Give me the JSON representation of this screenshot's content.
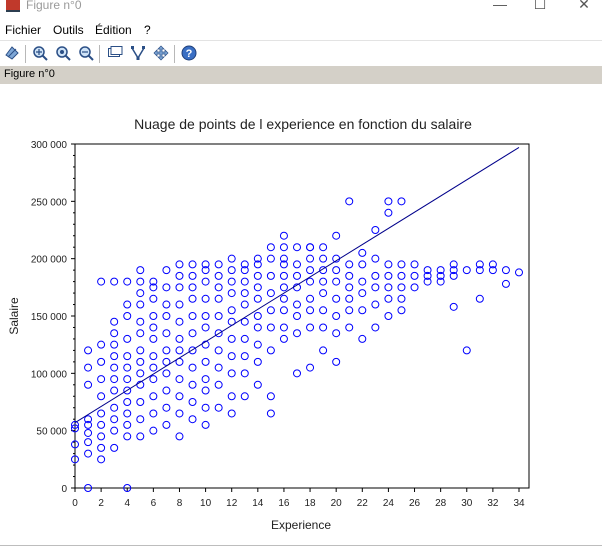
{
  "window": {
    "title": "Figure n°0",
    "minimize": "—",
    "maximize": "☐",
    "close": "✕"
  },
  "menu": {
    "items": [
      "Fichier",
      "Outils",
      "Édition",
      "?"
    ]
  },
  "toolbar": {
    "icons": [
      "rotate-icon",
      "zoom-in-icon",
      "zoom-out-icon",
      "zoom-fit-icon",
      "datatip-icon",
      "edit-curve-icon",
      "pan-icon",
      "help-icon"
    ]
  },
  "figure_label": "Figure n°0",
  "colors": {
    "points": "#0000ff",
    "line": "#00008b",
    "figbar": "#d4d0c8"
  },
  "chart_data": {
    "type": "scatter",
    "title": "Nuage de points de l experience en fonction du salaire",
    "xlabel": "Experience",
    "ylabel": "Salaire",
    "xlim": [
      0,
      34
    ],
    "ylim": [
      0,
      300000
    ],
    "xticks": [
      "0",
      "2",
      "4",
      "6",
      "8",
      "10",
      "12",
      "14",
      "16",
      "18",
      "20",
      "22",
      "24",
      "26",
      "28",
      "30",
      "32",
      "34"
    ],
    "yticks": [
      "0",
      "50 000",
      "100 000",
      "150 000",
      "200 000",
      "250 000",
      "300 000"
    ],
    "regression_line": {
      "x": [
        0,
        34
      ],
      "y": [
        57000,
        297000
      ]
    },
    "points": {
      "x": [
        0,
        0,
        0,
        0,
        1,
        1,
        1,
        1,
        1,
        1,
        1,
        1,
        1,
        2,
        2,
        2,
        2,
        2,
        2,
        2,
        2,
        2,
        2,
        3,
        3,
        3,
        3,
        3,
        3,
        3,
        3,
        3,
        3,
        3,
        3,
        4,
        4,
        4,
        4,
        4,
        4,
        4,
        4,
        4,
        4,
        4,
        4,
        4,
        5,
        5,
        5,
        5,
        5,
        5,
        5,
        5,
        5,
        5,
        5,
        5,
        5,
        6,
        6,
        6,
        6,
        6,
        6,
        6,
        6,
        6,
        6,
        6,
        6,
        7,
        7,
        7,
        7,
        7,
        7,
        7,
        7,
        7,
        7,
        7,
        8,
        8,
        8,
        8,
        8,
        8,
        8,
        8,
        8,
        8,
        8,
        8,
        9,
        9,
        9,
        9,
        9,
        9,
        9,
        9,
        9,
        9,
        9,
        10,
        10,
        10,
        10,
        10,
        10,
        10,
        10,
        10,
        10,
        10,
        10,
        11,
        11,
        11,
        11,
        11,
        11,
        11,
        11,
        11,
        11,
        12,
        12,
        12,
        12,
        12,
        12,
        12,
        12,
        12,
        12,
        12,
        13,
        13,
        13,
        13,
        13,
        13,
        13,
        13,
        13,
        13,
        14,
        14,
        14,
        14,
        14,
        14,
        14,
        14,
        14,
        14,
        15,
        15,
        15,
        15,
        15,
        15,
        15,
        15,
        15,
        16,
        16,
        16,
        16,
        16,
        16,
        16,
        16,
        16,
        16,
        17,
        17,
        17,
        17,
        17,
        17,
        17,
        17,
        18,
        18,
        18,
        18,
        18,
        18,
        18,
        18,
        18,
        19,
        19,
        19,
        19,
        19,
        19,
        19,
        19,
        20,
        20,
        20,
        20,
        20,
        20,
        20,
        20,
        21,
        21,
        21,
        21,
        21,
        21,
        21,
        22,
        22,
        22,
        22,
        22,
        22,
        23,
        23,
        23,
        23,
        23,
        23,
        24,
        24,
        24,
        24,
        24,
        24,
        24,
        25,
        25,
        25,
        25,
        25,
        25,
        26,
        26,
        26,
        27,
        27,
        27,
        28,
        28,
        28,
        29,
        29,
        29,
        29,
        30,
        30,
        31,
        31,
        31,
        32,
        32,
        33,
        33,
        34
      ],
      "y": [
        25000,
        38000,
        52000,
        55000,
        0,
        30000,
        40000,
        48000,
        55000,
        60000,
        90000,
        105000,
        120000,
        25000,
        35000,
        45000,
        55000,
        65000,
        80000,
        95000,
        110000,
        125000,
        180000,
        35000,
        50000,
        60000,
        70000,
        85000,
        95000,
        105000,
        115000,
        125000,
        135000,
        145000,
        180000,
        0,
        45000,
        55000,
        65000,
        75000,
        85000,
        95000,
        105000,
        115000,
        130000,
        150000,
        160000,
        180000,
        45000,
        60000,
        75000,
        90000,
        100000,
        110000,
        120000,
        135000,
        145000,
        160000,
        170000,
        180000,
        190000,
        50000,
        65000,
        80000,
        95000,
        105000,
        115000,
        130000,
        140000,
        150000,
        165000,
        175000,
        180000,
        55000,
        70000,
        85000,
        100000,
        110000,
        120000,
        135000,
        150000,
        160000,
        175000,
        190000,
        45000,
        65000,
        80000,
        95000,
        110000,
        120000,
        130000,
        145000,
        160000,
        175000,
        185000,
        195000,
        60000,
        75000,
        90000,
        105000,
        120000,
        135000,
        150000,
        165000,
        175000,
        185000,
        195000,
        55000,
        70000,
        85000,
        95000,
        110000,
        125000,
        140000,
        150000,
        165000,
        180000,
        190000,
        195000,
        70000,
        90000,
        105000,
        120000,
        135000,
        150000,
        165000,
        175000,
        185000,
        195000,
        65000,
        80000,
        100000,
        115000,
        130000,
        145000,
        155000,
        170000,
        180000,
        190000,
        200000,
        80000,
        100000,
        115000,
        130000,
        145000,
        160000,
        170000,
        180000,
        190000,
        195000,
        90000,
        110000,
        125000,
        140000,
        150000,
        165000,
        175000,
        185000,
        195000,
        200000,
        65000,
        80000,
        120000,
        140000,
        155000,
        170000,
        185000,
        200000,
        210000,
        130000,
        140000,
        155000,
        165000,
        175000,
        185000,
        195000,
        200000,
        210000,
        220000,
        100000,
        135000,
        150000,
        160000,
        175000,
        185000,
        195000,
        210000,
        105000,
        140000,
        155000,
        165000,
        180000,
        190000,
        200000,
        210000,
        210000,
        120000,
        140000,
        155000,
        170000,
        180000,
        190000,
        200000,
        210000,
        110000,
        135000,
        150000,
        165000,
        180000,
        190000,
        200000,
        220000,
        140000,
        155000,
        165000,
        175000,
        185000,
        195000,
        250000,
        130000,
        155000,
        170000,
        180000,
        195000,
        205000,
        140000,
        160000,
        175000,
        185000,
        200000,
        225000,
        150000,
        165000,
        175000,
        185000,
        195000,
        240000,
        250000,
        155000,
        165000,
        175000,
        185000,
        195000,
        250000,
        175000,
        185000,
        195000,
        180000,
        185000,
        190000,
        180000,
        185000,
        190000,
        158000,
        185000,
        190000,
        195000,
        120000,
        190000,
        165000,
        190000,
        195000,
        190000,
        195000,
        178000,
        190000,
        188000
      ]
    }
  }
}
